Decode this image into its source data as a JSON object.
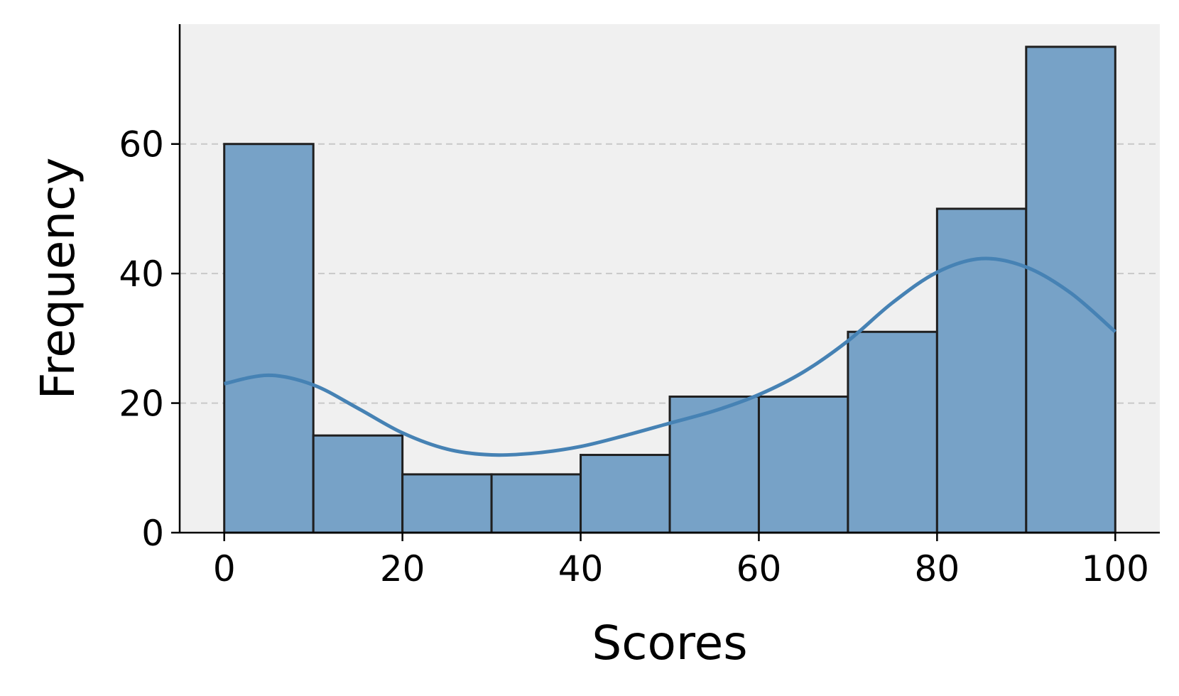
{
  "chart_data": {
    "type": "bar",
    "subtype": "histogram",
    "title": "",
    "xlabel": "Scores",
    "ylabel": "Frequency",
    "bin_edges": [
      0,
      10,
      20,
      30,
      40,
      50,
      60,
      70,
      80,
      90,
      100
    ],
    "values": [
      60,
      15,
      9,
      9,
      12,
      21,
      21,
      31,
      50,
      75
    ],
    "xlim": [
      -5,
      105
    ],
    "ylim": [
      0,
      78.5
    ],
    "xticks": [
      0,
      20,
      40,
      60,
      80,
      100
    ],
    "yticks": [
      0,
      20,
      40,
      60
    ],
    "grid": "y-dashed",
    "colors": {
      "bar_fill": "#77a2c7",
      "bar_edge": "#1f1f1f",
      "kde_line": "#4682b4",
      "plot_background": "#f0f0f0",
      "grid": "#c8c8c8"
    },
    "kde": {
      "x": [
        0,
        5,
        10,
        15,
        20,
        25,
        30,
        35,
        40,
        45,
        50,
        55,
        60,
        65,
        70,
        75,
        80,
        85,
        90,
        95,
        100
      ],
      "y": [
        23,
        24.3,
        22.8,
        19.2,
        15.4,
        12.9,
        12.0,
        12.3,
        13.3,
        15.0,
        16.9,
        18.8,
        21.3,
        24.8,
        29.6,
        35.5,
        40.2,
        42.3,
        41.0,
        37.0,
        31.0
      ]
    }
  }
}
